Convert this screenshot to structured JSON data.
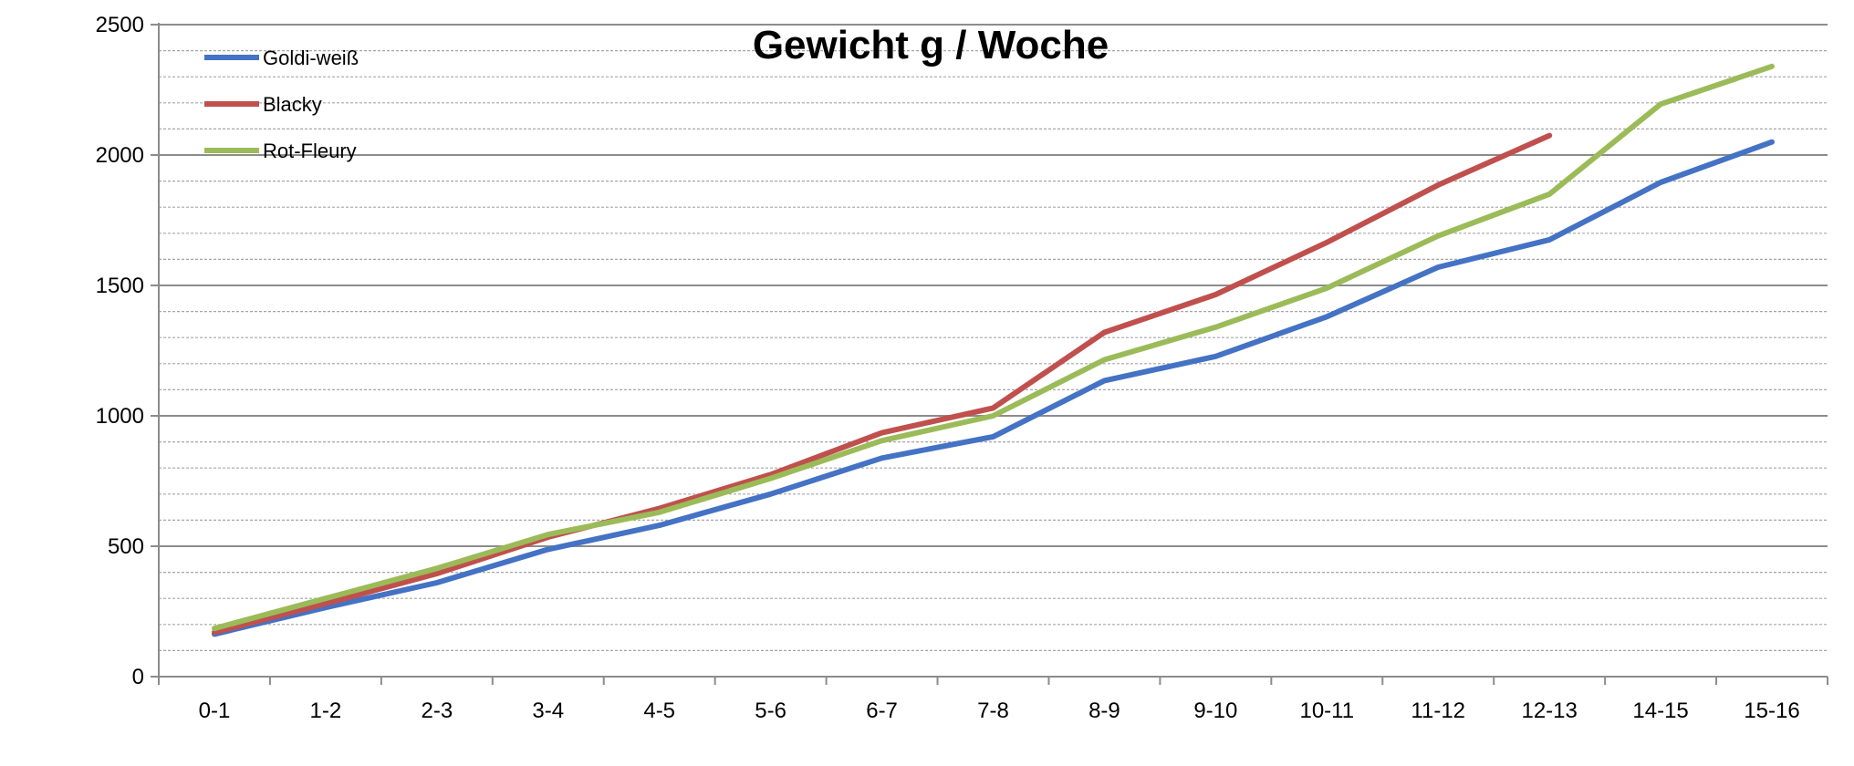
{
  "chart_data": {
    "type": "line",
    "title": "Gewicht g / Woche",
    "xlabel": "",
    "ylabel": "",
    "categories": [
      "0-1",
      "1-2",
      "2-3",
      "3-4",
      "4-5",
      "5-6",
      "6-7",
      "7-8",
      "8-9",
      "9-10",
      "10-11",
      "11-12",
      "12-13",
      "14-15",
      "15-16"
    ],
    "ylim": [
      0,
      2500
    ],
    "yticks": [
      0,
      500,
      1000,
      1500,
      2000,
      2500
    ],
    "ytick_labels": [
      "0",
      "500",
      "1000",
      "1500",
      "2000",
      "2500"
    ],
    "major_grid_step": 500,
    "minor_grid_step": 100,
    "grid": true,
    "legend_position": "top-left",
    "series": [
      {
        "name": "Goldi-weiß",
        "color": "#4472C4",
        "values": [
          163,
          265,
          360,
          488,
          580,
          700,
          838,
          920,
          1135,
          1228,
          1380,
          1570,
          1675,
          1895,
          2050
        ]
      },
      {
        "name": "Blacky",
        "color": "#C0504D",
        "values": [
          170,
          280,
          395,
          535,
          645,
          775,
          935,
          1030,
          1320,
          1465,
          1665,
          1885,
          2075,
          null,
          null
        ]
      },
      {
        "name": "Rot-Fleury",
        "color": "#9BBB59",
        "values": [
          185,
          300,
          415,
          545,
          630,
          760,
          905,
          1000,
          1215,
          1340,
          1490,
          1690,
          1850,
          2195,
          2340
        ]
      }
    ]
  }
}
